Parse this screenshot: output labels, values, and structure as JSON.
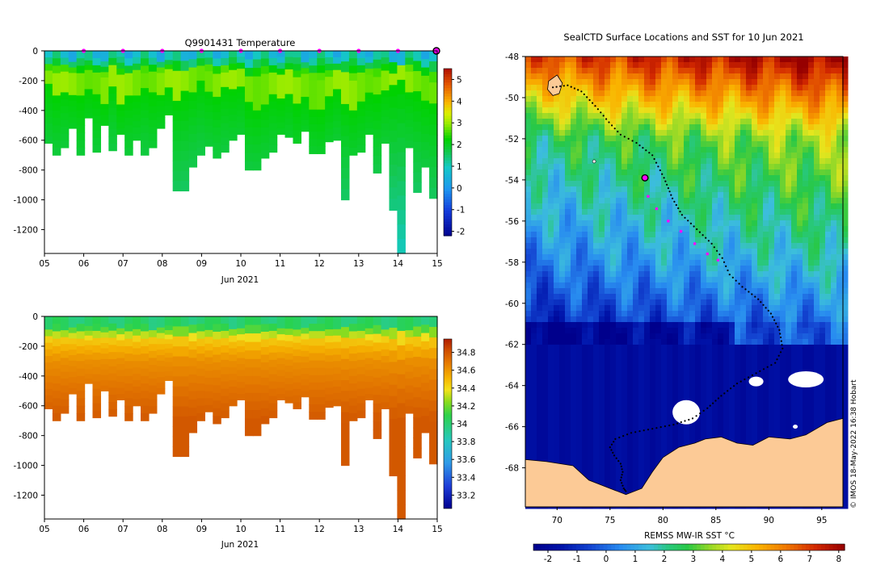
{
  "chart_data": [
    {
      "type": "heatmap",
      "title": "Q9901431  Temperature",
      "x_tick_labels": [
        "05",
        "06",
        "07",
        "08",
        "09",
        "10",
        "11",
        "12",
        "13",
        "14",
        "15"
      ],
      "x_range_days": [
        5,
        15
      ],
      "xlabel": "Jun 2021",
      "ylim": [
        -1360,
        0
      ],
      "y_ticks": [
        0,
        -200,
        -400,
        -600,
        -800,
        -1000,
        -1200
      ],
      "colorbar": {
        "range": [
          -2.2,
          5.5
        ],
        "ticks": [
          5,
          4,
          3,
          2,
          1,
          0,
          -1,
          -2
        ]
      },
      "profile_markers_days": [
        6,
        7,
        8,
        9,
        10,
        11,
        12,
        13,
        14
      ],
      "latest_marker_day": 15,
      "profile_max_depths": [
        620,
        700,
        650,
        520,
        700,
        450,
        680,
        500,
        670,
        560,
        700,
        600,
        700,
        650,
        520,
        430,
        940,
        940,
        780,
        700,
        640,
        720,
        680,
        600,
        560,
        800,
        800,
        720,
        680,
        560,
        580,
        620,
        540,
        690,
        690,
        610,
        600,
        1000,
        700,
        680,
        560,
        820,
        620,
        1070,
        1360,
        650,
        950,
        780,
        990
      ],
      "profile_isotherm_2C_depths": [
        240,
        300,
        260,
        280,
        320,
        260,
        300,
        340,
        220,
        350,
        320,
        300,
        260,
        300,
        280,
        260,
        320,
        300,
        260,
        220,
        260,
        300,
        250,
        260,
        240,
        360,
        380,
        340,
        300,
        320,
        280,
        360,
        300,
        380,
        400,
        320,
        260,
        340,
        380,
        340,
        300,
        320,
        260,
        260,
        240,
        260,
        300,
        340,
        360
      ]
    },
    {
      "type": "heatmap",
      "title": "",
      "x_tick_labels": [
        "05",
        "06",
        "07",
        "08",
        "09",
        "10",
        "11",
        "12",
        "13",
        "14",
        "15"
      ],
      "x_range_days": [
        5,
        15
      ],
      "xlabel": "Jun 2021",
      "ylim": [
        -1360,
        0
      ],
      "y_ticks": [
        0,
        -200,
        -400,
        -600,
        -800,
        -1000,
        -1200
      ],
      "colorbar": {
        "range": [
          33.05,
          34.95
        ],
        "ticks": [
          "34.8",
          "34.6",
          "34.4",
          "34.2",
          "34",
          "33.8",
          "33.6",
          "33.4",
          "33.2"
        ]
      },
      "profile_max_depths": [
        620,
        700,
        650,
        520,
        700,
        450,
        680,
        500,
        670,
        560,
        700,
        600,
        700,
        650,
        520,
        430,
        940,
        940,
        780,
        700,
        640,
        720,
        680,
        600,
        560,
        800,
        800,
        720,
        680,
        560,
        580,
        620,
        540,
        690,
        690,
        610,
        600,
        1000,
        700,
        680,
        560,
        820,
        620,
        1070,
        1360,
        650,
        950,
        780,
        990
      ]
    },
    {
      "type": "map",
      "title": "SealCTD Surface Locations and SST for 10 Jun 2021",
      "x_ticks": [
        70,
        75,
        80,
        85,
        90,
        95
      ],
      "xlim": [
        67,
        97
      ],
      "y_ticks": [
        -48,
        -50,
        -52,
        -54,
        -56,
        -58,
        -60,
        -62,
        -64,
        -66,
        -68
      ],
      "ylim": [
        -69.9,
        -48
      ],
      "colorbar_label": "REMSS MW-IR SST °C",
      "colorbar_ticks": [
        -2,
        -1,
        0,
        1,
        2,
        3,
        4,
        5,
        6,
        7,
        8
      ],
      "colorbar_range": [
        -2.5,
        8.2
      ],
      "current_position": {
        "lon": 78.3,
        "lat": -53.9
      },
      "track_recent": [
        [
          78.6,
          -54.8
        ],
        [
          79.4,
          -55.4
        ],
        [
          80.5,
          -56.0
        ],
        [
          81.7,
          -56.5
        ],
        [
          83.0,
          -57.1
        ],
        [
          84.2,
          -57.6
        ],
        [
          85.2,
          -57.9
        ]
      ],
      "track_history": [
        [
          69.6,
          -49.5
        ],
        [
          71.0,
          -49.4
        ],
        [
          72.3,
          -49.7
        ],
        [
          73.6,
          -50.4
        ],
        [
          74.9,
          -51.2
        ],
        [
          76.0,
          -51.8
        ],
        [
          77.5,
          -52.2
        ],
        [
          79.0,
          -52.8
        ],
        [
          80.1,
          -53.9
        ],
        [
          80.9,
          -54.9
        ],
        [
          81.8,
          -55.7
        ],
        [
          83.2,
          -56.4
        ],
        [
          84.6,
          -57.1
        ],
        [
          85.6,
          -57.8
        ],
        [
          86.3,
          -58.6
        ],
        [
          87.5,
          -59.2
        ],
        [
          89.0,
          -59.8
        ],
        [
          90.2,
          -60.5
        ],
        [
          91.0,
          -61.3
        ],
        [
          91.3,
          -62.2
        ],
        [
          90.6,
          -62.9
        ],
        [
          88.8,
          -63.4
        ],
        [
          87.0,
          -63.9
        ],
        [
          85.5,
          -64.5
        ],
        [
          84.2,
          -65.1
        ],
        [
          82.8,
          -65.6
        ],
        [
          81.0,
          -65.9
        ],
        [
          79.0,
          -66.1
        ],
        [
          77.0,
          -66.3
        ],
        [
          75.5,
          -66.6
        ],
        [
          75.0,
          -67.0
        ],
        [
          75.4,
          -67.4
        ],
        [
          76.0,
          -67.8
        ],
        [
          76.2,
          -68.2
        ],
        [
          76.0,
          -68.6
        ],
        [
          76.3,
          -69.0
        ],
        [
          76.6,
          -69.2
        ]
      ]
    }
  ],
  "credit": "© IMOS 18-May-2022 16:38 Hobart"
}
